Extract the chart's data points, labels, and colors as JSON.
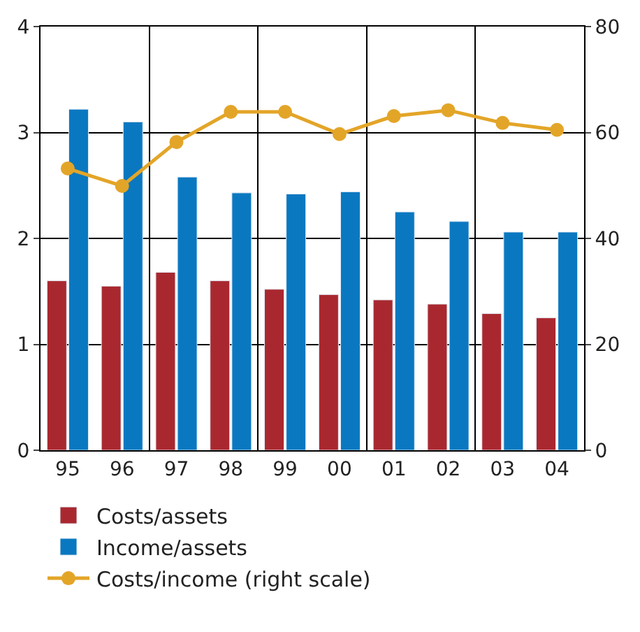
{
  "chart_data": {
    "type": "bar",
    "categories": [
      "95",
      "96",
      "97",
      "98",
      "99",
      "00",
      "01",
      "02",
      "03",
      "04"
    ],
    "series": [
      {
        "name": "Costs/assets",
        "color": "#a9282f",
        "values": [
          1.6,
          1.55,
          1.68,
          1.6,
          1.52,
          1.47,
          1.42,
          1.38,
          1.29,
          1.25
        ]
      },
      {
        "name": "Income/assets",
        "color": "#0a78c0",
        "values": [
          3.22,
          3.1,
          2.58,
          2.43,
          2.42,
          2.44,
          2.25,
          2.16,
          2.06,
          2.06
        ]
      },
      {
        "name": "Costs/income (right scale)",
        "color": "#e3a528",
        "type": "line",
        "axis": "y2",
        "marker": "circle",
        "values": [
          53.2,
          49.9,
          58.2,
          63.9,
          63.9,
          59.7,
          63.1,
          64.2,
          61.8,
          60.5
        ]
      }
    ],
    "ylim": [
      0,
      4
    ],
    "yticks": [
      0,
      1,
      2,
      3,
      4
    ],
    "y2lim": [
      0,
      80
    ],
    "y2ticks": [
      0,
      20,
      40,
      60,
      80
    ],
    "grid": true,
    "legend": "bottom"
  }
}
